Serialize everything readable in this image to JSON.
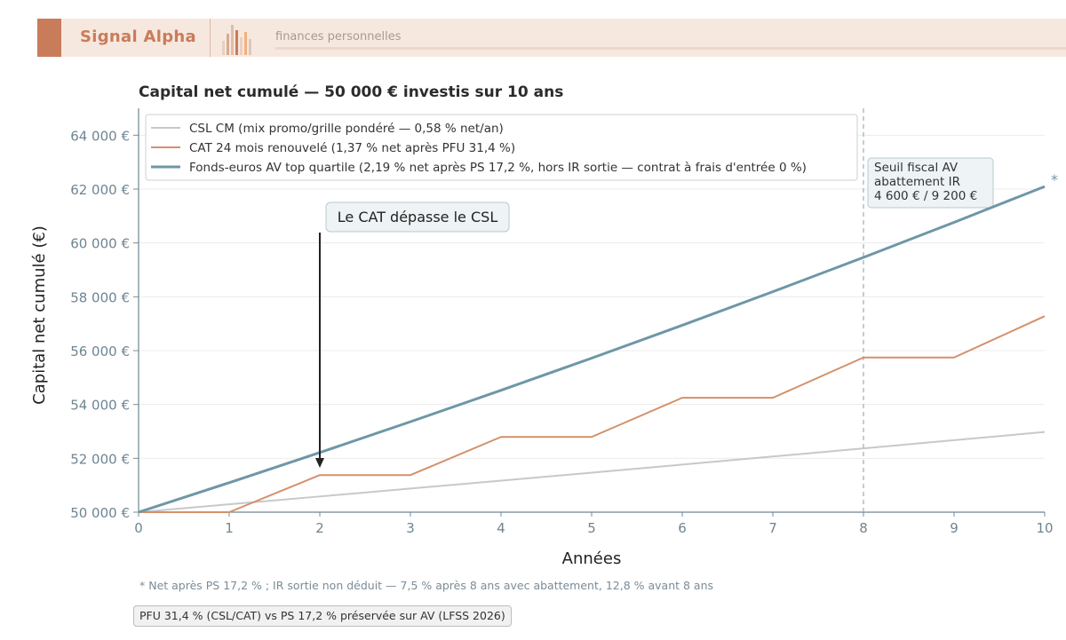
{
  "header": {
    "brand": "Signal Alpha",
    "tagline": "finances personnelles",
    "logo_icon": "bar-chart-logo-icon"
  },
  "chart_data": {
    "type": "line",
    "title": "Capital net cumulé — 50 000 € investis sur 10 ans",
    "xlabel": "Années",
    "ylabel": "Capital net cumulé (€)",
    "xlim": [
      0,
      10
    ],
    "ylim": [
      50000,
      65000
    ],
    "x_ticks": [
      "0",
      "1",
      "2",
      "3",
      "4",
      "5",
      "6",
      "7",
      "8",
      "9",
      "10"
    ],
    "y_ticks": [
      {
        "value": 50000,
        "label": "50 000 €"
      },
      {
        "value": 52000,
        "label": "52 000 €"
      },
      {
        "value": 54000,
        "label": "54 000 €"
      },
      {
        "value": 56000,
        "label": "56 000 €"
      },
      {
        "value": 58000,
        "label": "58 000 €"
      },
      {
        "value": 60000,
        "label": "60 000 €"
      },
      {
        "value": 62000,
        "label": "62 000 €"
      },
      {
        "value": 64000,
        "label": "64 000 €"
      }
    ],
    "grid": true,
    "legend_position": "top-left",
    "series": [
      {
        "name": "CSL CM (mix promo/grille pondéré — 0,58 % net/an)",
        "color": "#c8c8c8",
        "x": [
          0,
          1,
          2,
          3,
          4,
          5,
          6,
          7,
          8,
          9,
          10
        ],
        "y": [
          50000,
          50291,
          50583,
          50876,
          51171,
          51468,
          51767,
          52067,
          52369,
          52673,
          52978
        ]
      },
      {
        "name": "CAT 24 mois renouvelé (1,37 % net après PFU 31,4 %)",
        "color": "#d4906c",
        "x": [
          0,
          1,
          2,
          3,
          4,
          5,
          6,
          7,
          8,
          9,
          10
        ],
        "y": [
          50000,
          50000,
          51378,
          51378,
          52794,
          52794,
          54249,
          54249,
          55744,
          55744,
          57280
        ]
      },
      {
        "name": "Fonds-euros AV top quartile (2,19 % net après PS 17,2 %, hors IR sortie — contrat à frais d'entrée 0 %)",
        "color": "#6e97a6",
        "x": [
          0,
          1,
          2,
          3,
          4,
          5,
          6,
          7,
          8,
          9,
          10
        ],
        "y": [
          50000,
          51095,
          52214,
          53358,
          54526,
          55720,
          56941,
          58188,
          59462,
          60764,
          62095
        ]
      }
    ],
    "annotations": [
      {
        "text": "Le CAT dépasse le CSL",
        "x": 2,
        "y": 51378,
        "type": "arrow"
      },
      {
        "text": "Seuil fiscal AV\nabattement IR\n4 600 € / 9 200 €",
        "x": 8,
        "type": "vertical-line"
      },
      {
        "text": "*",
        "x": 10,
        "y": 62095
      }
    ]
  },
  "footnote": "* Net après PS 17,2 % ; IR sortie non déduit — 7,5 % après 8 ans avec abattement, 12,8 % avant 8 ans",
  "badge": "PFU 31,4 % (CSL/CAT) vs PS 17,2 % préservée sur AV (LFSS 2026)"
}
